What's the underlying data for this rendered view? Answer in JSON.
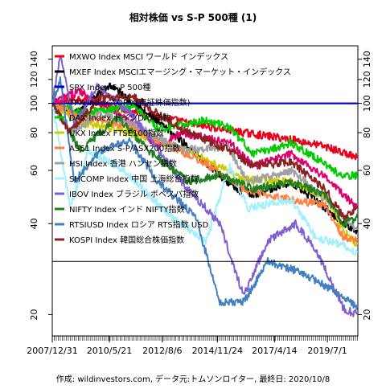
{
  "chart_data": {
    "type": "line",
    "title": "相対株価 vs S-P 500種 (1)",
    "footer": "作成: wildinvestors.com, データ元:トムソンロイター, 最終日: 2020/10/8",
    "x_tick_labels": [
      "2007/12/31",
      "2010/5/21",
      "2012/8/6",
      "2014/11/24",
      "2017/4/14",
      "2019/7/1"
    ],
    "x_tick_positions_date": [
      "2007-12-31",
      "2010-05-21",
      "2012-08-06",
      "2014-11-24",
      "2017-04-14",
      "2019-07-01"
    ],
    "x_range": [
      "2007-12-31",
      "2020-10-08"
    ],
    "y_scale": "log",
    "y_ticks": [
      20,
      40,
      60,
      80,
      100,
      120,
      140
    ],
    "ylim": [
      17,
      155
    ],
    "reference_lines": [
      {
        "y": 100,
        "color": "#0000cc"
      },
      {
        "y": 30,
        "color": "#000000"
      }
    ],
    "legend_position": "top-left",
    "series": [
      {
        "name": "MXWO Index MSCI ワールド インデックス",
        "color": "#e8001c",
        "points": [
          [
            "2008-01",
            100
          ],
          [
            "2009-03",
            104
          ],
          [
            "2010-06",
            98
          ],
          [
            "2012-01",
            92
          ],
          [
            "2014-01",
            85
          ],
          [
            "2016-01",
            80
          ],
          [
            "2018-01",
            76
          ],
          [
            "2019-06",
            72
          ],
          [
            "2020-10",
            66
          ]
        ]
      },
      {
        "name": "MXEF Index MSCIエマージング・マーケット・インデックス",
        "color": "#000000",
        "points": [
          [
            "2008-01",
            100
          ],
          [
            "2008-10",
            90
          ],
          [
            "2010-06",
            115
          ],
          [
            "2011-06",
            100
          ],
          [
            "2013-06",
            75
          ],
          [
            "2015-09",
            52
          ],
          [
            "2016-06",
            50
          ],
          [
            "2018-01",
            55
          ],
          [
            "2019-06",
            45
          ],
          [
            "2020-03",
            40
          ],
          [
            "2020-10",
            38
          ]
        ]
      },
      {
        "name": "SPX Index S-P 500種",
        "color": "#0000cc",
        "points": [
          [
            "2008-01",
            100
          ],
          [
            "2020-10",
            100
          ]
        ]
      },
      {
        "name": "TPX Index TOPIX(東証株価指数)",
        "color": "#e0006c",
        "points": [
          [
            "2008-01",
            100
          ],
          [
            "2008-06",
            104
          ],
          [
            "2009-03",
            110
          ],
          [
            "2011-06",
            85
          ],
          [
            "2012-06",
            72
          ],
          [
            "2013-06",
            80
          ],
          [
            "2015-06",
            74
          ],
          [
            "2016-06",
            62
          ],
          [
            "2018-01",
            68
          ],
          [
            "2019-06",
            57
          ],
          [
            "2020-10",
            45
          ]
        ]
      },
      {
        "name": "DAX Index ドイツDAX指数",
        "color": "#00cc00",
        "points": [
          [
            "2008-01",
            100
          ],
          [
            "2009-03",
            93
          ],
          [
            "2011-06",
            98
          ],
          [
            "2012-06",
            82
          ],
          [
            "2014-06",
            88
          ],
          [
            "2015-06",
            83
          ],
          [
            "2016-06",
            68
          ],
          [
            "2018-01",
            74
          ],
          [
            "2019-06",
            63
          ],
          [
            "2020-03",
            57
          ],
          [
            "2020-10",
            58
          ]
        ]
      },
      {
        "name": "UKX Index FTSE100指数",
        "color": "#cccc00",
        "points": [
          [
            "2008-01",
            100
          ],
          [
            "2009-03",
            86
          ],
          [
            "2010-06",
            83
          ],
          [
            "2012-06",
            75
          ],
          [
            "2014-01",
            68
          ],
          [
            "2016-01",
            56
          ],
          [
            "2018-01",
            55
          ],
          [
            "2019-06",
            49
          ],
          [
            "2020-03",
            38
          ],
          [
            "2020-10",
            34
          ]
        ]
      },
      {
        "name": "AS51 Index S-P/ASX200指数",
        "color": "#ff8040",
        "points": [
          [
            "2008-01",
            100
          ],
          [
            "2009-03",
            90
          ],
          [
            "2011-01",
            85
          ],
          [
            "2013-01",
            72
          ],
          [
            "2014-06",
            63
          ],
          [
            "2016-01",
            52
          ],
          [
            "2018-01",
            48
          ],
          [
            "2019-06",
            46
          ],
          [
            "2020-03",
            36
          ],
          [
            "2020-10",
            35
          ]
        ]
      },
      {
        "name": "HSI Index 香港 ハンセン指数",
        "color": "#a0a0a0",
        "points": [
          [
            "2008-01",
            100
          ],
          [
            "2008-10",
            80
          ],
          [
            "2010-01",
            93
          ],
          [
            "2011-06",
            85
          ],
          [
            "2013-06",
            70
          ],
          [
            "2015-05",
            72
          ],
          [
            "2016-03",
            55
          ],
          [
            "2018-01",
            60
          ],
          [
            "2019-06",
            48
          ],
          [
            "2020-03",
            42
          ],
          [
            "2020-10",
            38
          ]
        ]
      },
      {
        "name": "SHCOMP Index 中国 上海総合指数",
        "color": "#a0f0ff",
        "points": [
          [
            "2008-01",
            100
          ],
          [
            "2008-10",
            45
          ],
          [
            "2009-07",
            70
          ],
          [
            "2011-01",
            60
          ],
          [
            "2013-01",
            42
          ],
          [
            "2014-06",
            35
          ],
          [
            "2015-06",
            62
          ],
          [
            "2016-03",
            45
          ],
          [
            "2018-01",
            48
          ],
          [
            "2019-01",
            36
          ],
          [
            "2020-03",
            34
          ],
          [
            "2020-10",
            32
          ]
        ]
      },
      {
        "name": "IBOV Index ブラジル ボベスパ指数",
        "color": "#8060d0",
        "points": [
          [
            "2008-01",
            100
          ],
          [
            "2008-05",
            145
          ],
          [
            "2008-12",
            85
          ],
          [
            "2009-12",
            115
          ],
          [
            "2011-06",
            90
          ],
          [
            "2013-06",
            55
          ],
          [
            "2015-01",
            40
          ],
          [
            "2016-01",
            23
          ],
          [
            "2017-01",
            35
          ],
          [
            "2018-03",
            40
          ],
          [
            "2019-01",
            33
          ],
          [
            "2020-03",
            21
          ],
          [
            "2020-10",
            20
          ]
        ]
      },
      {
        "name": "NIFTY Index インド NIFTY指数",
        "color": "#208020",
        "points": [
          [
            "2008-01",
            100
          ],
          [
            "2009-03",
            70
          ],
          [
            "2010-10",
            90
          ],
          [
            "2012-01",
            70
          ],
          [
            "2013-09",
            55
          ],
          [
            "2015-01",
            58
          ],
          [
            "2016-06",
            52
          ],
          [
            "2018-01",
            55
          ],
          [
            "2019-06",
            50
          ],
          [
            "2020-03",
            40
          ],
          [
            "2020-10",
            42
          ]
        ]
      },
      {
        "name": "RTSIUSD Index ロシア RTS指数 USD",
        "color": "#4080c0",
        "points": [
          [
            "2008-01",
            100
          ],
          [
            "2008-05",
            120
          ],
          [
            "2008-12",
            55
          ],
          [
            "2010-01",
            70
          ],
          [
            "2011-04",
            75
          ],
          [
            "2012-06",
            55
          ],
          [
            "2014-01",
            42
          ],
          [
            "2015-01",
            22
          ],
          [
            "2016-01",
            22
          ],
          [
            "2017-01",
            30
          ],
          [
            "2018-03",
            28
          ],
          [
            "2019-01",
            26
          ],
          [
            "2020-03",
            23
          ],
          [
            "2020-10",
            21
          ]
        ]
      },
      {
        "name": "KOSPI Index 韓国総合株価指数",
        "color": "#8b2020",
        "points": [
          [
            "2008-01",
            100
          ],
          [
            "2008-10",
            80
          ],
          [
            "2010-01",
            105
          ],
          [
            "2011-06",
            105
          ],
          [
            "2013-06",
            82
          ],
          [
            "2015-06",
            70
          ],
          [
            "2016-06",
            62
          ],
          [
            "2018-01",
            64
          ],
          [
            "2019-06",
            52
          ],
          [
            "2020-03",
            42
          ],
          [
            "2020-10",
            45
          ]
        ]
      }
    ]
  }
}
